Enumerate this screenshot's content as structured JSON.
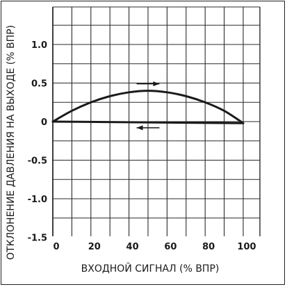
{
  "chart_data": {
    "type": "line",
    "xlabel": "ВХОДНОЙ СИГНАЛ (% ВПР)",
    "ylabel": "ОТКЛОНЕНИЕ ДАВЛЕНИЯ НА ВЫХОДЕ (% ВПР)",
    "xlim": [
      0,
      100
    ],
    "ylim": [
      -1.5,
      1.5
    ],
    "x_ticks": [
      0,
      20,
      40,
      60,
      80,
      100
    ],
    "x_tick_labels": [
      "0",
      "20",
      "40",
      "60",
      "80",
      "100"
    ],
    "y_ticks": [
      1.0,
      0.5,
      0,
      -0.5,
      -1.0,
      -1.5
    ],
    "y_tick_labels": [
      "1.0",
      "0.5",
      "0",
      "-0.5",
      "-1.0",
      "-1.5"
    ],
    "grid": true,
    "series": [
      {
        "direction": "increasing",
        "x": [
          0,
          10,
          20,
          30,
          40,
          50,
          60,
          70,
          80,
          90,
          100
        ],
        "y": [
          0,
          0.14,
          0.25,
          0.33,
          0.38,
          0.4,
          0.38,
          0.33,
          0.25,
          0.14,
          -0.02
        ],
        "arrow": {
          "x_from": 44,
          "x_to": 56,
          "y": 0.49,
          "direction": "right"
        }
      },
      {
        "direction": "decreasing",
        "x": [
          100,
          0
        ],
        "y": [
          -0.02,
          0
        ],
        "arrow": {
          "x_from": 56,
          "x_to": 44,
          "y": -0.08,
          "direction": "left"
        }
      }
    ],
    "colors": {
      "line": "#1a1a1a",
      "grid": "#2a2a2a",
      "frame": "#222222"
    }
  }
}
